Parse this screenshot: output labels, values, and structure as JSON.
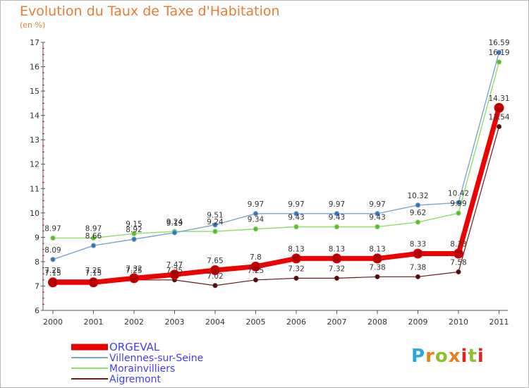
{
  "header": {
    "title": "Evolution du Taux de Taxe d'Habitation",
    "unit": "(en %)"
  },
  "logo": {
    "text": "Proxiti",
    "colors": [
      "#2aa7e0",
      "#ef7d1a",
      "#8dbf2e",
      "#e52222"
    ]
  },
  "chart_data": {
    "type": "line",
    "title": "Evolution du Taux de Taxe d'Habitation",
    "ylabel": "(en %)",
    "xlabel": "",
    "x": [
      "2000",
      "2001",
      "2002",
      "2003",
      "2004",
      "2005",
      "2006",
      "2007",
      "2008",
      "2009",
      "2010",
      "2011"
    ],
    "ylim": [
      6,
      17
    ],
    "yticks": [
      6,
      7,
      8,
      9,
      10,
      11,
      12,
      13,
      14,
      15,
      16,
      17
    ],
    "grid": false,
    "legend_position": "bottom-left",
    "series": [
      {
        "name": "Aigremont",
        "color": "#6b1a1a",
        "values": [
          7.25,
          7.25,
          7.25,
          7.25,
          7.02,
          7.25,
          7.32,
          7.32,
          7.38,
          7.38,
          7.58,
          13.54
        ],
        "labels": [
          "7.25",
          "7.25",
          "7.25",
          "7.25",
          "7.02",
          "7.25",
          "7.32",
          "7.32",
          "7.38",
          "7.38",
          "7.58",
          "13.54"
        ]
      },
      {
        "name": "Morainvilliers",
        "color": "#90dd6a",
        "values": [
          8.97,
          8.97,
          9.15,
          9.24,
          9.24,
          9.34,
          9.43,
          9.43,
          9.43,
          9.62,
          9.99,
          16.19
        ],
        "labels": [
          "8.97",
          "8.97",
          "9.15",
          "9.24",
          "9.24",
          "9.34",
          "9.43",
          "9.43",
          "9.43",
          "9.62",
          "9.99",
          "16.19"
        ]
      },
      {
        "name": "Villennes-sur-Seine",
        "color": "#7ba5ce",
        "values": [
          8.09,
          8.66,
          8.92,
          9.19,
          9.51,
          9.97,
          9.97,
          9.97,
          9.97,
          10.32,
          10.42,
          16.59
        ],
        "labels": [
          "8.09",
          "8.66",
          "8.92",
          "9.19",
          "9.51",
          "9.97",
          "9.97",
          "9.97",
          "9.97",
          "10.32",
          "10.42",
          "16.59"
        ]
      },
      {
        "name": "ORGEVAL",
        "color": "#ee0000",
        "values": [
          7.15,
          7.15,
          7.32,
          7.47,
          7.65,
          7.8,
          8.13,
          8.13,
          8.13,
          8.33,
          8.33,
          14.31
        ],
        "labels": [
          "7.15",
          "7.15",
          "7.32",
          "7.47",
          "7.65",
          "7.8",
          "8.13",
          "8.13",
          "8.13",
          "8.33",
          "8.33",
          "14.31"
        ]
      }
    ],
    "legend": [
      "ORGEVAL",
      "Villennes-sur-Seine",
      "Morainvilliers",
      "Aigremont"
    ]
  }
}
